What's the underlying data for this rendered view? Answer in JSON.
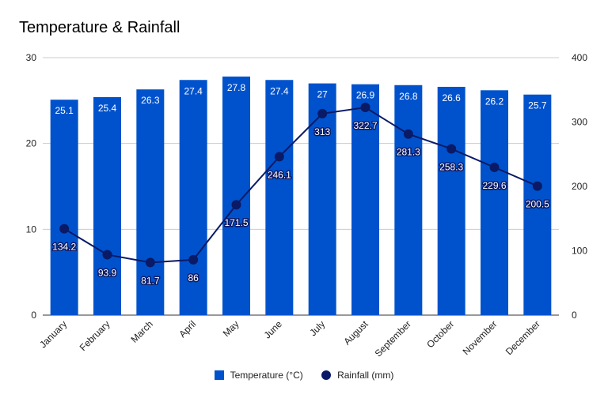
{
  "chart_data": {
    "type": "bar+line",
    "title": "Temperature & Rainfall",
    "categories": [
      "January",
      "February",
      "March",
      "April",
      "May",
      "June",
      "July",
      "August",
      "September",
      "October",
      "November",
      "December"
    ],
    "series": [
      {
        "name": "Temperature (°C)",
        "type": "bar",
        "axis": "left",
        "values": [
          25.1,
          25.4,
          26.3,
          27.4,
          27.8,
          27.4,
          27,
          26.9,
          26.8,
          26.6,
          26.2,
          25.7
        ],
        "labels": [
          "25.1",
          "25.4",
          "26.3",
          "27.4",
          "27.8",
          "27.4",
          "27",
          "26.9",
          "26.8",
          "26.6",
          "26.2",
          "25.7"
        ]
      },
      {
        "name": "Rainfall (mm)",
        "type": "line",
        "axis": "right",
        "values": [
          134.2,
          93.9,
          81.7,
          86,
          171.5,
          246.1,
          313,
          322.7,
          281.3,
          258.3,
          229.6,
          200.5
        ],
        "labels": [
          "134.2",
          "93.9",
          "81.7",
          "86",
          "171.5",
          "246.1",
          "313",
          "322.7",
          "281.3",
          "258.3",
          "229.6",
          "200.5"
        ]
      }
    ],
    "y_left": {
      "range": [
        0,
        30
      ],
      "ticks": [
        "0",
        "10",
        "20",
        "30"
      ]
    },
    "y_right": {
      "range": [
        0,
        400
      ],
      "ticks": [
        "0",
        "100",
        "200",
        "300",
        "400"
      ]
    },
    "grid": true,
    "legend_position": "bottom",
    "colors": {
      "bar": "#0052cc",
      "line": "#0a1a66"
    }
  }
}
